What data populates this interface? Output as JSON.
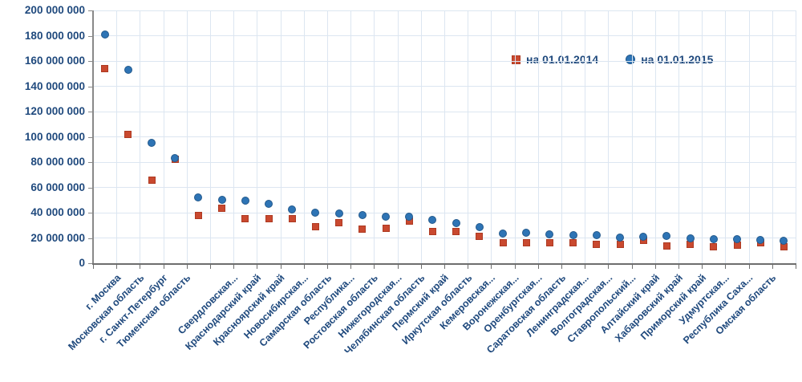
{
  "chart_data": {
    "type": "scatter",
    "title": "",
    "xlabel": "",
    "ylabel": "",
    "ylim": [
      0,
      200000000
    ],
    "ytick_step": 20000000,
    "ytick_labels": [
      "0",
      "20 000 000",
      "40 000 000",
      "60 000 000",
      "80 000 000",
      "100 000 000",
      "120 000 000",
      "140 000 000",
      "160 000 000",
      "180 000 000",
      "200 000 000"
    ],
    "grid": true,
    "legend_position": "top-right-inside",
    "categories": [
      "г. Москва",
      "Московская область",
      "г. Санкт-Петербург",
      "Тюменская область",
      "",
      "Свердловская...",
      "Краснодарский край",
      "Красноярский край",
      "Новосибирская...",
      "Самарская область",
      "Республика...",
      "Ростовская область",
      "Нижегородская...",
      "Челябинская область",
      "Пермский край",
      "Иркутская область",
      "Кемеровская...",
      "Воронежская...",
      "Оренбургская...",
      "Саратовская область",
      "Ленинградская...",
      "Волгоградская...",
      "Ставропольский...",
      "Алтайский край",
      "Хабаровский край",
      "Приморский край",
      "Удмуртская...",
      "Республика Саха...",
      "Омская область",
      ""
    ],
    "series": [
      {
        "name": "на 01.01.2014",
        "marker": "square",
        "color": "#c9492f",
        "border_color": "#ae3a22",
        "values": [
          154000000,
          102000000,
          66000000,
          82000000,
          38000000,
          43500000,
          35000000,
          35000000,
          35000000,
          29000000,
          32000000,
          27000000,
          27500000,
          33500000,
          25000000,
          25000000,
          21000000,
          16500000,
          16500000,
          16500000,
          16000000,
          15000000,
          15000000,
          18000000,
          13500000,
          15000000,
          13000000,
          14000000,
          16000000,
          13000000
        ]
      },
      {
        "name": "на 01.01.2015",
        "marker": "circle",
        "color": "#2e74b5",
        "border_color": "#23598c",
        "values": [
          181000000,
          153000000,
          95000000,
          83000000,
          52000000,
          50000000,
          49500000,
          47000000,
          42500000,
          40000000,
          39500000,
          38000000,
          37000000,
          37000000,
          34000000,
          32000000,
          28500000,
          23500000,
          24000000,
          23000000,
          22000000,
          22000000,
          20500000,
          21000000,
          21500000,
          20000000,
          19000000,
          19000000,
          18500000,
          18000000
        ]
      }
    ],
    "colors": {
      "axis_text": "#1f497d",
      "gridline": "#dce6f1",
      "axis_line": "#6e6e6e"
    }
  }
}
